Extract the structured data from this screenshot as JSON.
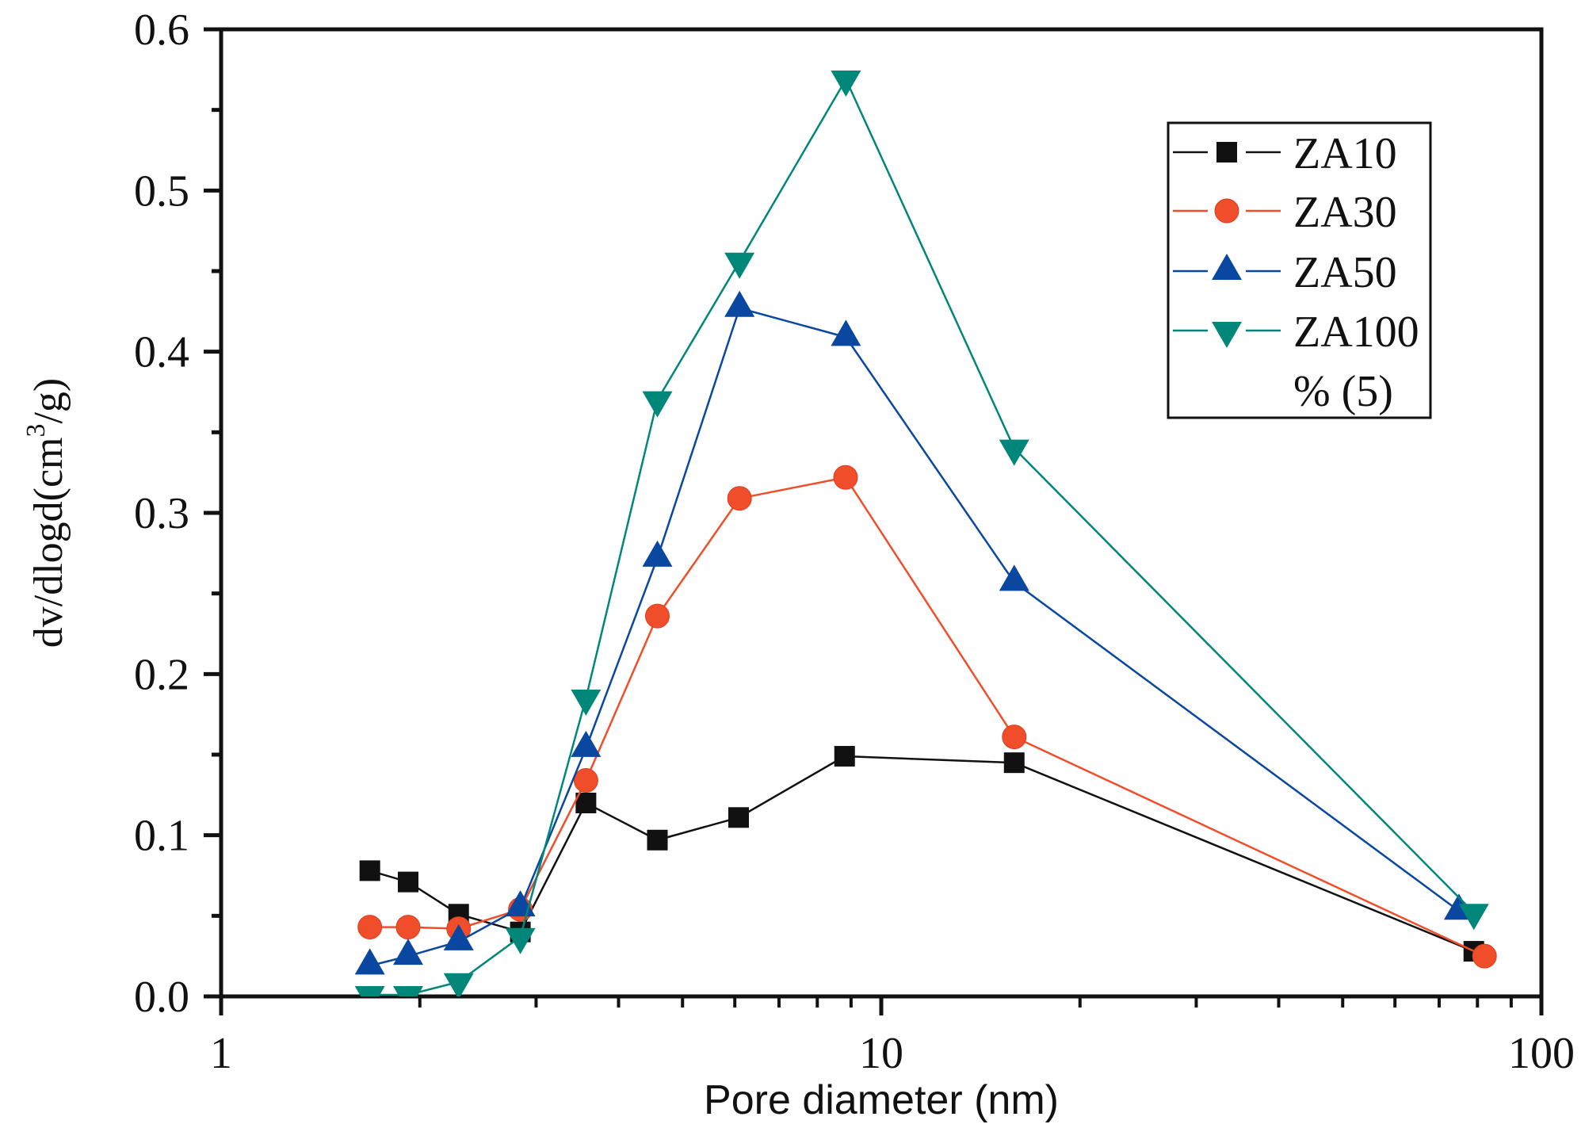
{
  "chart_data": {
    "type": "line",
    "title": "",
    "xlabel": "Pore diameter (nm)",
    "ylabel": "dv/dlogd(cm³/g)",
    "ylabel_parts": {
      "pre": "dv/dlogd(cm",
      "sup": "3",
      "post": "/g)"
    },
    "xscale": "log",
    "xlim": [
      1,
      100
    ],
    "ylim": [
      0.0,
      0.6
    ],
    "xticks": [
      1,
      10,
      100
    ],
    "xtick_labels": [
      "1",
      "10",
      "100"
    ],
    "yticks": [
      0.0,
      0.1,
      0.2,
      0.3,
      0.4,
      0.5,
      0.6
    ],
    "ytick_labels": [
      "0.0",
      "0.1",
      "0.2",
      "0.3",
      "0.4",
      "0.5",
      "0.6"
    ],
    "grid": false,
    "legend_position": "top-right",
    "legend_extra": "% (5)",
    "series": [
      {
        "name": "ZA10",
        "marker": "square",
        "color": "#111111",
        "x": [
          1.68,
          1.92,
          2.29,
          2.84,
          3.57,
          4.58,
          6.08,
          8.8,
          15.9,
          79
        ],
        "values": [
          0.078,
          0.071,
          0.051,
          0.04,
          0.12,
          0.097,
          0.111,
          0.149,
          0.145,
          0.028
        ]
      },
      {
        "name": "ZA30",
        "marker": "circle",
        "color": "#f04e2a",
        "x": [
          1.68,
          1.92,
          2.29,
          2.84,
          3.57,
          4.58,
          6.1,
          8.83,
          15.9,
          82
        ],
        "values": [
          0.043,
          0.043,
          0.042,
          0.054,
          0.134,
          0.236,
          0.309,
          0.322,
          0.161,
          0.025
        ]
      },
      {
        "name": "ZA50",
        "marker": "triangle-up",
        "color": "#0a47a1",
        "x": [
          1.68,
          1.92,
          2.29,
          2.84,
          3.57,
          4.58,
          6.1,
          8.84,
          15.9,
          75
        ],
        "values": [
          0.019,
          0.025,
          0.034,
          0.055,
          0.154,
          0.272,
          0.427,
          0.409,
          0.257,
          0.053
        ]
      },
      {
        "name": "ZA100",
        "marker": "triangle-down",
        "color": "#00877a",
        "x": [
          1.68,
          1.92,
          2.29,
          2.84,
          3.57,
          4.58,
          6.1,
          8.84,
          15.9,
          79
        ],
        "values": [
          0.001,
          0.001,
          0.009,
          0.037,
          0.185,
          0.37,
          0.456,
          0.569,
          0.34,
          0.052
        ]
      }
    ]
  }
}
